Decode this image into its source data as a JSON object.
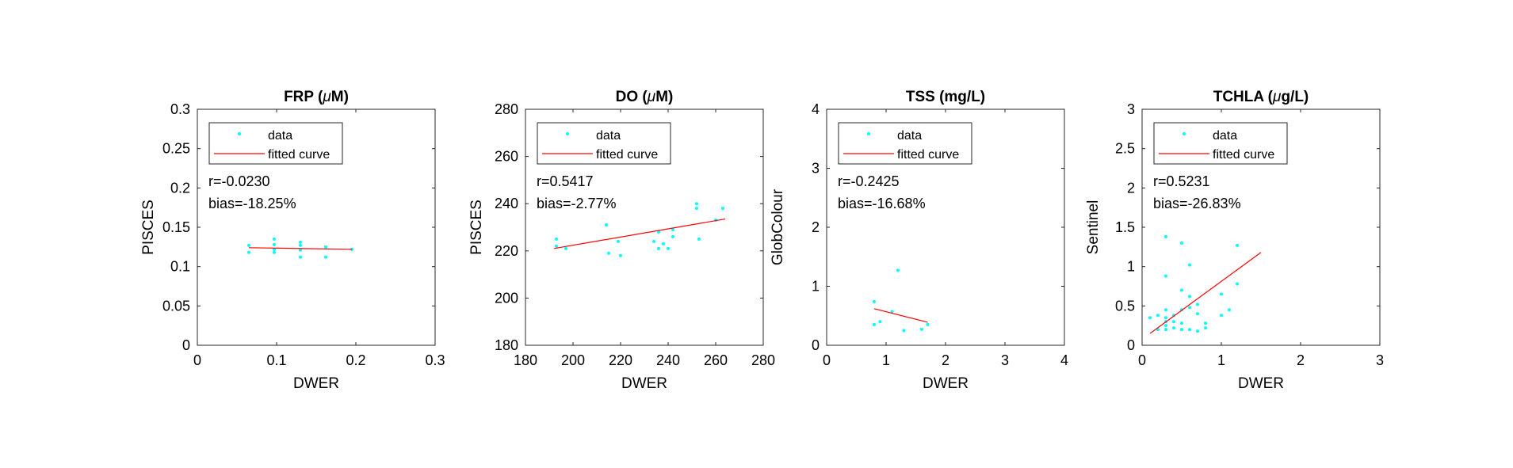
{
  "chart_data": [
    {
      "type": "scatter",
      "title_main": "FRP (",
      "title_greek": "μ",
      "title_rest": "M)",
      "xlabel": "DWER",
      "ylabel": "PISCES",
      "xlim": [
        0,
        0.3
      ],
      "ylim": [
        0,
        0.3
      ],
      "xticks": [
        "0",
        "0.1",
        "0.2",
        "0.3"
      ],
      "yticks": [
        "0",
        "0.05",
        "0.1",
        "0.15",
        "0.2",
        "0.25",
        "0.3"
      ],
      "xtick_values": [
        0,
        0.1,
        0.2,
        0.3
      ],
      "ytick_values": [
        0,
        0.05,
        0.1,
        0.15,
        0.2,
        0.25,
        0.3
      ],
      "stat_r": "r=-0.0230",
      "stat_bias": "bias=-18.25%",
      "legend": {
        "data_label": "data",
        "fit_label": "fitted curve",
        "placement": "top-left"
      },
      "points": [
        {
          "x": 0.065,
          "y": 0.127
        },
        {
          "x": 0.065,
          "y": 0.118
        },
        {
          "x": 0.097,
          "y": 0.135
        },
        {
          "x": 0.097,
          "y": 0.128
        },
        {
          "x": 0.097,
          "y": 0.122
        },
        {
          "x": 0.097,
          "y": 0.118
        },
        {
          "x": 0.13,
          "y": 0.131
        },
        {
          "x": 0.13,
          "y": 0.127
        },
        {
          "x": 0.13,
          "y": 0.121
        },
        {
          "x": 0.13,
          "y": 0.112
        },
        {
          "x": 0.162,
          "y": 0.125
        },
        {
          "x": 0.162,
          "y": 0.112
        },
        {
          "x": 0.195,
          "y": 0.122
        }
      ],
      "fit": {
        "x": [
          0.065,
          0.195
        ],
        "y": [
          0.124,
          0.122
        ]
      }
    },
    {
      "type": "scatter",
      "title_main": "DO (",
      "title_greek": "μ",
      "title_rest": "M)",
      "xlabel": "DWER",
      "ylabel": "PISCES",
      "xlim": [
        180,
        280
      ],
      "ylim": [
        180,
        280
      ],
      "xticks": [
        "180",
        "200",
        "220",
        "240",
        "260",
        "280"
      ],
      "yticks": [
        "180",
        "200",
        "220",
        "240",
        "260",
        "280"
      ],
      "xtick_values": [
        180,
        200,
        220,
        240,
        260,
        280
      ],
      "ytick_values": [
        180,
        200,
        220,
        240,
        260,
        280
      ],
      "stat_r": "r=0.5417",
      "stat_bias": "bias=-2.77%",
      "legend": {
        "data_label": "data",
        "fit_label": "fitted curve",
        "placement": "top-left"
      },
      "points": [
        {
          "x": 193,
          "y": 225
        },
        {
          "x": 193,
          "y": 222
        },
        {
          "x": 197,
          "y": 221
        },
        {
          "x": 214,
          "y": 231
        },
        {
          "x": 215,
          "y": 219
        },
        {
          "x": 219,
          "y": 224
        },
        {
          "x": 220,
          "y": 218
        },
        {
          "x": 234,
          "y": 224
        },
        {
          "x": 236,
          "y": 221
        },
        {
          "x": 236,
          "y": 228
        },
        {
          "x": 238,
          "y": 223
        },
        {
          "x": 240,
          "y": 221
        },
        {
          "x": 242,
          "y": 226
        },
        {
          "x": 242,
          "y": 229
        },
        {
          "x": 252,
          "y": 240
        },
        {
          "x": 252,
          "y": 238
        },
        {
          "x": 253,
          "y": 225
        },
        {
          "x": 260,
          "y": 233
        },
        {
          "x": 263,
          "y": 238
        }
      ],
      "fit": {
        "x": [
          192,
          264
        ],
        "y": [
          221,
          233.5
        ]
      }
    },
    {
      "type": "scatter",
      "title_main": "TSS (mg/L)",
      "title_greek": "",
      "title_rest": "",
      "xlabel": "DWER",
      "ylabel": "GlobColour",
      "xlim": [
        0,
        4
      ],
      "ylim": [
        0,
        4
      ],
      "xticks": [
        "0",
        "1",
        "2",
        "3",
        "4"
      ],
      "yticks": [
        "0",
        "1",
        "2",
        "3",
        "4"
      ],
      "xtick_values": [
        0,
        1,
        2,
        3,
        4
      ],
      "ytick_values": [
        0,
        1,
        2,
        3,
        4
      ],
      "stat_r": "r=-0.2425",
      "stat_bias": "bias=-16.68%",
      "legend": {
        "data_label": "data",
        "fit_label": "fitted curve",
        "placement": "top-left"
      },
      "points": [
        {
          "x": 0.8,
          "y": 0.74
        },
        {
          "x": 0.8,
          "y": 0.35
        },
        {
          "x": 0.9,
          "y": 0.4
        },
        {
          "x": 1.1,
          "y": 0.57
        },
        {
          "x": 1.2,
          "y": 1.27
        },
        {
          "x": 1.3,
          "y": 0.25
        },
        {
          "x": 1.6,
          "y": 0.27
        },
        {
          "x": 1.7,
          "y": 0.35
        }
      ],
      "fit": {
        "x": [
          0.8,
          1.7
        ],
        "y": [
          0.62,
          0.39
        ]
      }
    },
    {
      "type": "scatter",
      "title_main": "TCHLA (",
      "title_greek": "μ",
      "title_rest": "g/L)",
      "xlabel": "DWER",
      "ylabel": "Sentinel",
      "xlim": [
        0,
        3
      ],
      "ylim": [
        0,
        3
      ],
      "xticks": [
        "0",
        "1",
        "2",
        "3"
      ],
      "yticks": [
        "0",
        "0.5",
        "1",
        "1.5",
        "2",
        "2.5",
        "3"
      ],
      "xtick_values": [
        0,
        1,
        2,
        3
      ],
      "ytick_values": [
        0,
        0.5,
        1,
        1.5,
        2,
        2.5,
        3
      ],
      "stat_r": "r=0.5231",
      "stat_bias": "bias=-26.83%",
      "legend": {
        "data_label": "data",
        "fit_label": "fitted curve",
        "placement": "top-left"
      },
      "points": [
        {
          "x": 0.1,
          "y": 0.35
        },
        {
          "x": 0.2,
          "y": 0.38
        },
        {
          "x": 0.2,
          "y": 0.2
        },
        {
          "x": 0.3,
          "y": 1.38
        },
        {
          "x": 0.3,
          "y": 0.88
        },
        {
          "x": 0.3,
          "y": 0.45
        },
        {
          "x": 0.3,
          "y": 0.35
        },
        {
          "x": 0.3,
          "y": 0.3
        },
        {
          "x": 0.3,
          "y": 0.25
        },
        {
          "x": 0.3,
          "y": 0.2
        },
        {
          "x": 0.4,
          "y": 0.38
        },
        {
          "x": 0.4,
          "y": 0.3
        },
        {
          "x": 0.4,
          "y": 0.22
        },
        {
          "x": 0.5,
          "y": 1.3
        },
        {
          "x": 0.5,
          "y": 0.7
        },
        {
          "x": 0.5,
          "y": 0.45
        },
        {
          "x": 0.5,
          "y": 0.28
        },
        {
          "x": 0.5,
          "y": 0.2
        },
        {
          "x": 0.6,
          "y": 1.02
        },
        {
          "x": 0.6,
          "y": 0.62
        },
        {
          "x": 0.6,
          "y": 0.48
        },
        {
          "x": 0.6,
          "y": 0.2
        },
        {
          "x": 0.7,
          "y": 0.52
        },
        {
          "x": 0.7,
          "y": 0.4
        },
        {
          "x": 0.7,
          "y": 0.18
        },
        {
          "x": 0.8,
          "y": 0.28
        },
        {
          "x": 0.8,
          "y": 0.22
        },
        {
          "x": 1.0,
          "y": 0.65
        },
        {
          "x": 1.0,
          "y": 0.38
        },
        {
          "x": 1.1,
          "y": 0.45
        },
        {
          "x": 1.2,
          "y": 1.27
        },
        {
          "x": 1.2,
          "y": 0.78
        }
      ],
      "fit": {
        "x": [
          0.1,
          1.5
        ],
        "y": [
          0.15,
          1.18
        ]
      }
    }
  ],
  "colors": {
    "data": "#00ffff",
    "fit": "#ff0000",
    "axes": "#262626",
    "text": "#000000",
    "background": "#ffffff"
  }
}
